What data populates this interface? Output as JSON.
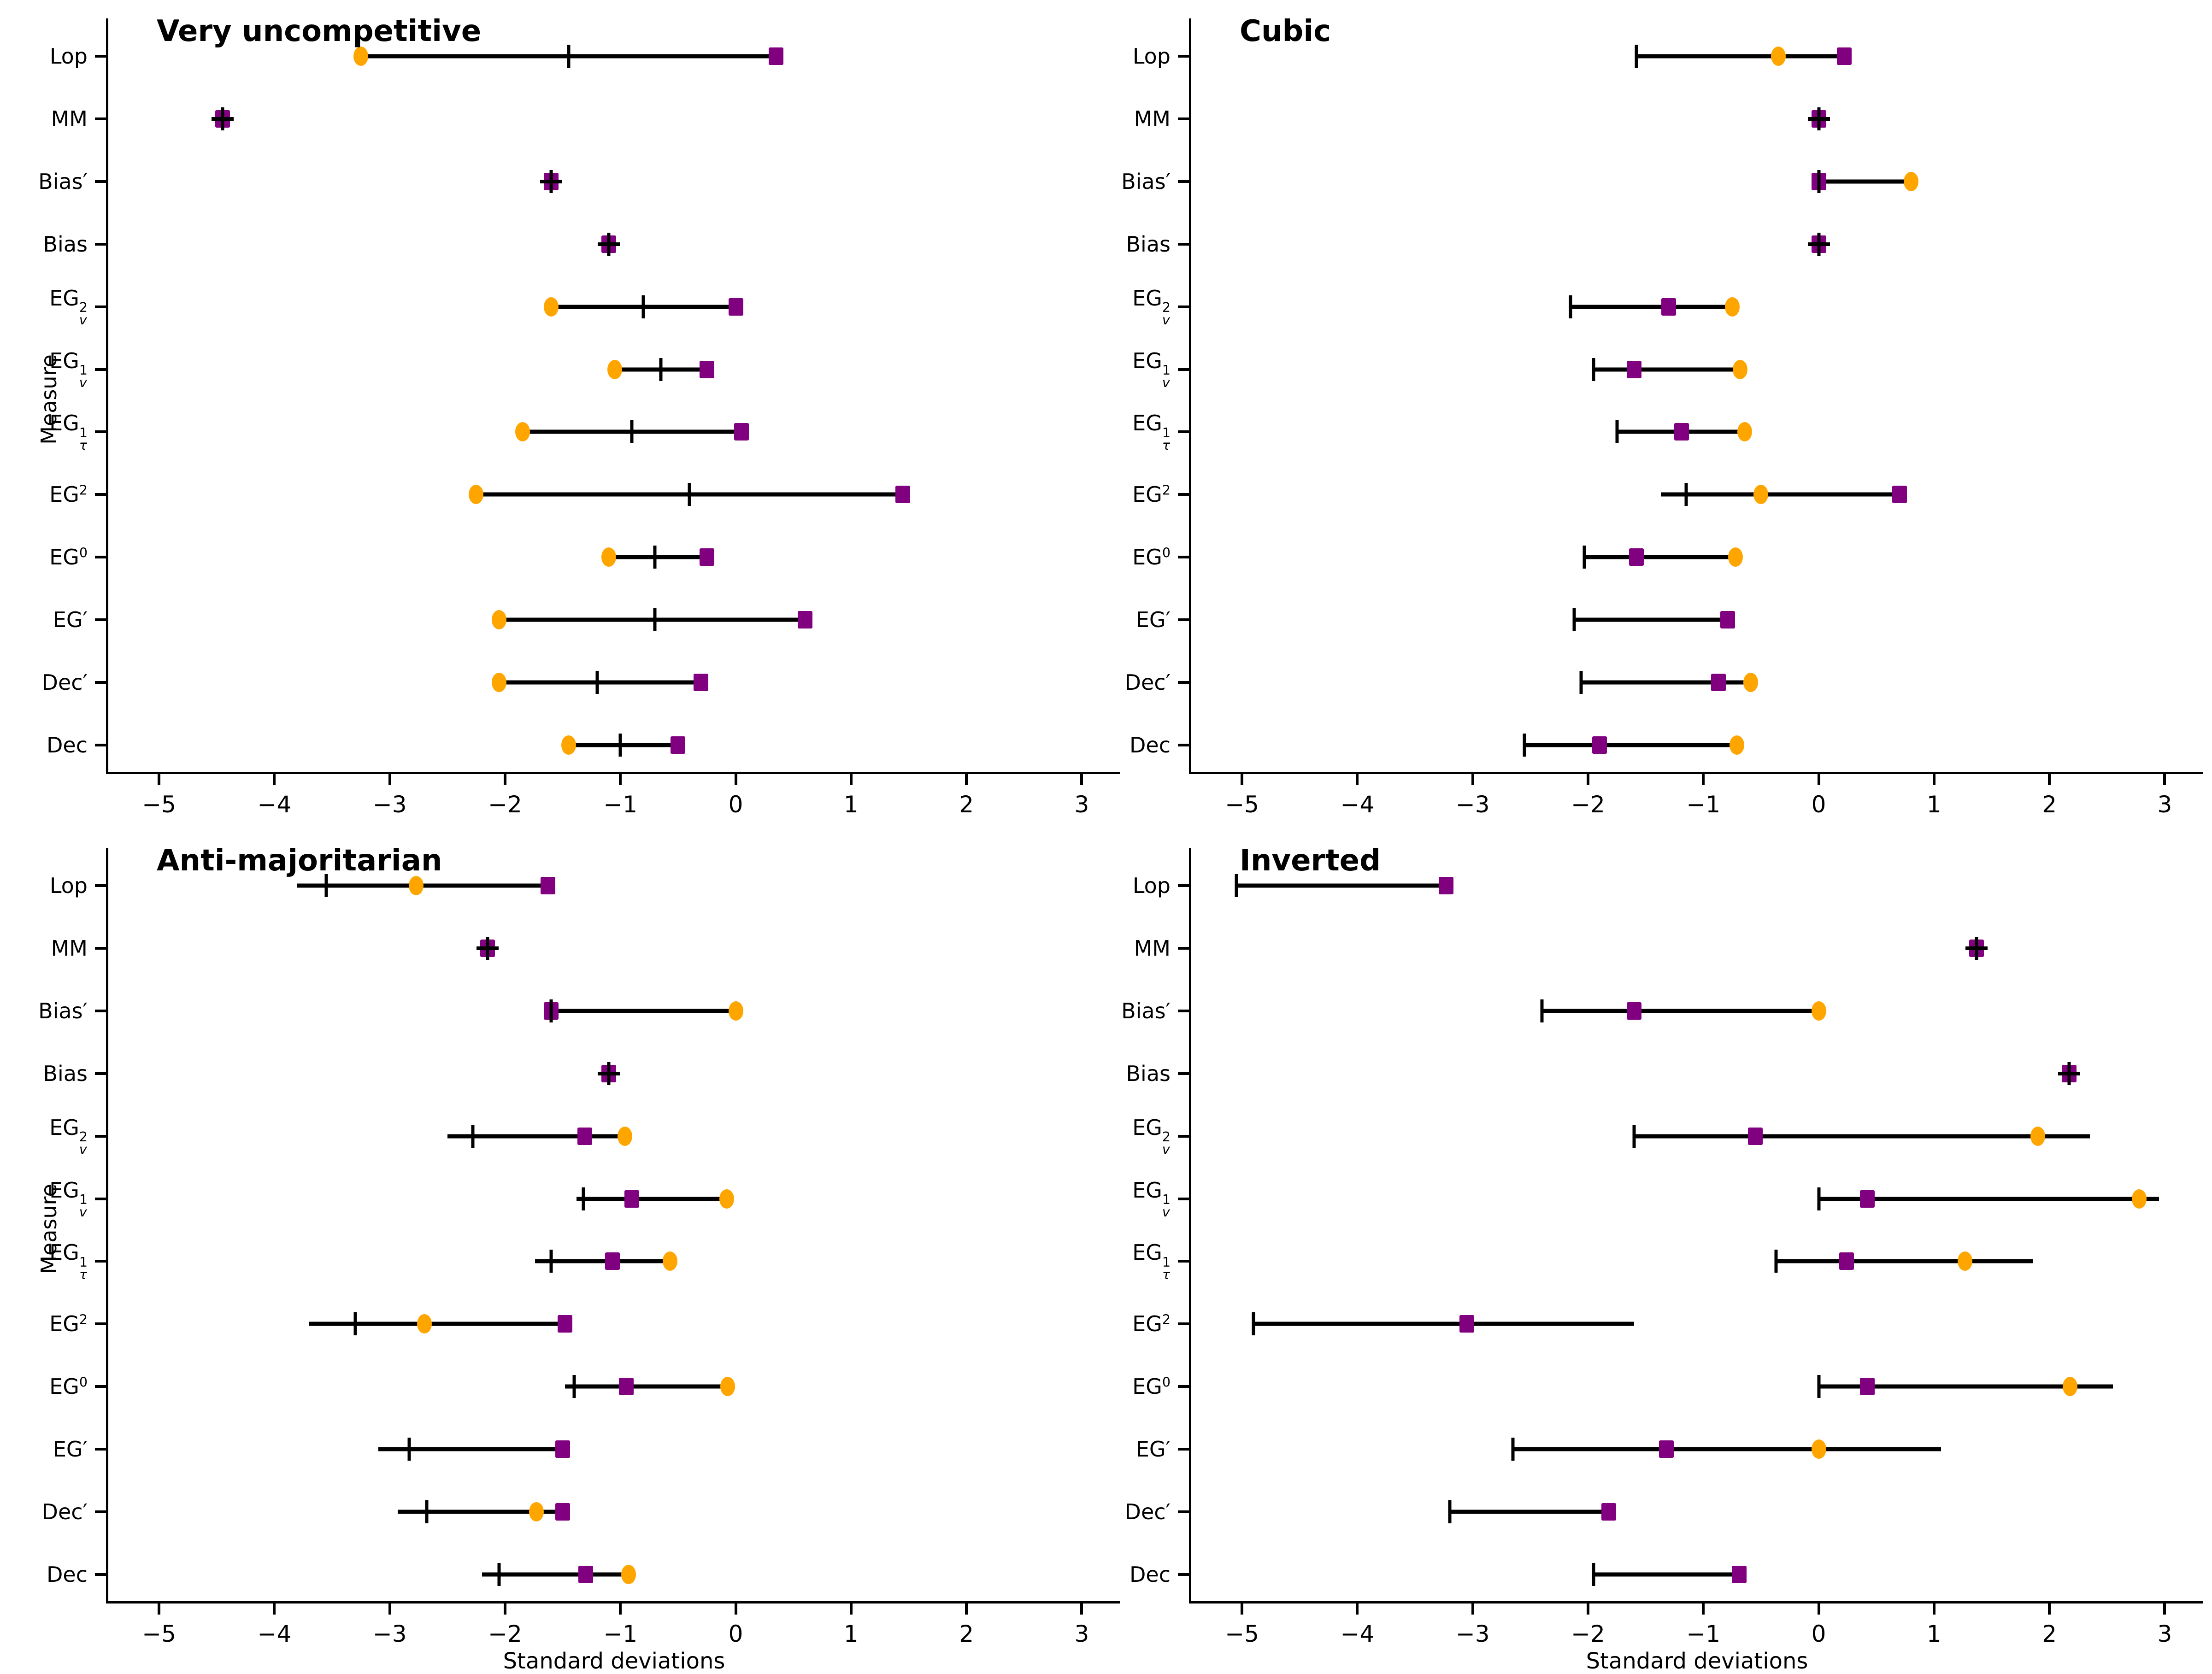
{
  "figure": {
    "xlabel": "Standard deviations",
    "ylabel": "Measure",
    "x_ticks": [
      -5,
      -4,
      -3,
      -2,
      -1,
      0,
      1,
      2,
      3
    ],
    "xmin": -5.44,
    "xmax": 3.33,
    "colors": {
      "circle": "#FFA500",
      "square": "#800080",
      "line": "#000000"
    },
    "measures": [
      {
        "t": "Lop"
      },
      {
        "t": "MM"
      },
      {
        "t": "Bias′"
      },
      {
        "t": "Bias"
      },
      {
        "t": "EG",
        "sup": "2",
        "sub": "v"
      },
      {
        "t": "EG",
        "sup": "1",
        "sub": "v"
      },
      {
        "t": "EG",
        "sup": "1",
        "sub": "τ"
      },
      {
        "t": "EG",
        "sup": "2"
      },
      {
        "t": "EG",
        "sup": "0"
      },
      {
        "t": "EG′"
      },
      {
        "t": "Dec′"
      },
      {
        "t": "Dec"
      }
    ]
  },
  "chart_data": [
    {
      "type": "dot-range",
      "title": "Very uncompetitive",
      "xlabel_shown": false,
      "ylabel_shown": true,
      "rows": [
        {
          "measure": "Lop",
          "lo": -3.25,
          "hi": 0.35,
          "tick": -1.45,
          "circle": -3.25,
          "square": 0.35
        },
        {
          "measure": "MM",
          "lo": null,
          "hi": null,
          "tick": -4.45,
          "circle": null,
          "square": -4.45,
          "cross": true
        },
        {
          "measure": "Bias′",
          "lo": null,
          "hi": null,
          "tick": -1.6,
          "circle": null,
          "square": -1.6,
          "cross": true
        },
        {
          "measure": "Bias",
          "lo": null,
          "hi": null,
          "tick": -1.1,
          "circle": null,
          "square": -1.1,
          "cross": true
        },
        {
          "measure": "EG2v",
          "lo": -1.6,
          "hi": 0.0,
          "tick": -0.8,
          "circle": -1.6,
          "square": 0.0
        },
        {
          "measure": "EG1v",
          "lo": -1.05,
          "hi": -0.25,
          "tick": -0.65,
          "circle": -1.05,
          "square": -0.25
        },
        {
          "measure": "EG1t",
          "lo": -1.85,
          "hi": 0.05,
          "tick": -0.9,
          "circle": -1.85,
          "square": 0.05
        },
        {
          "measure": "EG2",
          "lo": -2.25,
          "hi": 1.45,
          "tick": -0.4,
          "circle": -2.25,
          "square": 1.45
        },
        {
          "measure": "EG0",
          "lo": -1.1,
          "hi": -0.25,
          "tick": -0.7,
          "circle": -1.1,
          "square": -0.25
        },
        {
          "measure": "EG′",
          "lo": -2.05,
          "hi": 0.6,
          "tick": -0.7,
          "circle": -2.05,
          "square": 0.6
        },
        {
          "measure": "Dec′",
          "lo": -2.05,
          "hi": -0.3,
          "tick": -1.2,
          "circle": -2.05,
          "square": -0.3
        },
        {
          "measure": "Dec",
          "lo": -1.45,
          "hi": -0.5,
          "tick": -1.0,
          "circle": -1.45,
          "square": -0.5
        }
      ]
    },
    {
      "type": "dot-range",
      "title": "Cubic",
      "xlabel_shown": false,
      "ylabel_shown": false,
      "rows": [
        {
          "measure": "Lop",
          "lo": -1.58,
          "hi": 0.22,
          "tick": -1.58,
          "circle": -0.35,
          "square": 0.22
        },
        {
          "measure": "MM",
          "lo": null,
          "hi": null,
          "tick": 0.0,
          "circle": null,
          "square": 0.0,
          "cross": true
        },
        {
          "measure": "Bias′",
          "lo": 0.0,
          "hi": 0.8,
          "tick": 0.0,
          "circle": 0.8,
          "square": 0.0,
          "cross": true
        },
        {
          "measure": "Bias",
          "lo": null,
          "hi": null,
          "tick": 0.0,
          "circle": null,
          "square": 0.0,
          "cross": true
        },
        {
          "measure": "EG2v",
          "lo": -2.15,
          "hi": -0.75,
          "tick": -2.15,
          "circle": -0.75,
          "square": -1.3
        },
        {
          "measure": "EG1v",
          "lo": -1.95,
          "hi": -0.68,
          "tick": -1.95,
          "circle": -0.68,
          "square": -1.6
        },
        {
          "measure": "EG1t",
          "lo": -1.75,
          "hi": -0.64,
          "tick": -1.75,
          "circle": -0.64,
          "square": -1.19
        },
        {
          "measure": "EG2",
          "lo": -1.37,
          "hi": 0.7,
          "tick": -1.15,
          "circle": -0.5,
          "square": 0.7
        },
        {
          "measure": "EG0",
          "lo": -2.03,
          "hi": -0.72,
          "tick": -2.03,
          "circle": -0.72,
          "square": -1.58
        },
        {
          "measure": "EG′",
          "lo": -2.12,
          "hi": -0.79,
          "tick": -2.12,
          "circle": null,
          "square": -0.79
        },
        {
          "measure": "Dec′",
          "lo": -2.06,
          "hi": -0.59,
          "tick": -2.06,
          "circle": -0.59,
          "square": -0.87
        },
        {
          "measure": "Dec",
          "lo": -2.55,
          "hi": -0.71,
          "tick": -2.55,
          "circle": -0.71,
          "square": -1.9
        }
      ]
    },
    {
      "type": "dot-range",
      "title": "Anti-majoritarian",
      "xlabel_shown": true,
      "ylabel_shown": true,
      "rows": [
        {
          "measure": "Lop",
          "lo": -3.8,
          "hi": -1.63,
          "tick": -3.55,
          "circle": -2.77,
          "square": -1.63
        },
        {
          "measure": "MM",
          "lo": null,
          "hi": null,
          "tick": -2.15,
          "circle": null,
          "square": -2.15,
          "cross": true
        },
        {
          "measure": "Bias′",
          "lo": -1.6,
          "hi": 0.0,
          "tick": -1.6,
          "circle": 0.0,
          "square": -1.6,
          "cross": true
        },
        {
          "measure": "Bias",
          "lo": null,
          "hi": null,
          "tick": -1.1,
          "circle": null,
          "square": -1.1,
          "cross": true
        },
        {
          "measure": "EG2v",
          "lo": -2.5,
          "hi": -0.96,
          "tick": -2.28,
          "circle": -0.96,
          "square": -1.31
        },
        {
          "measure": "EG1v",
          "lo": -1.38,
          "hi": -0.08,
          "tick": -1.32,
          "circle": -0.08,
          "square": -0.9
        },
        {
          "measure": "EG1t",
          "lo": -1.74,
          "hi": -0.57,
          "tick": -1.6,
          "circle": -0.57,
          "square": -1.07
        },
        {
          "measure": "EG2",
          "lo": -3.7,
          "hi": -1.48,
          "tick": -3.3,
          "circle": -2.7,
          "square": -1.48
        },
        {
          "measure": "EG0",
          "lo": -1.48,
          "hi": -0.07,
          "tick": -1.4,
          "circle": -0.07,
          "square": -0.95
        },
        {
          "measure": "EG′",
          "lo": -3.1,
          "hi": -1.5,
          "tick": -2.83,
          "circle": null,
          "square": -1.5
        },
        {
          "measure": "Dec′",
          "lo": -2.93,
          "hi": -1.5,
          "tick": -2.68,
          "circle": -1.73,
          "square": -1.5
        },
        {
          "measure": "Dec",
          "lo": -2.2,
          "hi": -0.93,
          "tick": -2.05,
          "circle": -0.93,
          "square": -1.3
        }
      ]
    },
    {
      "type": "dot-range",
      "title": "Inverted",
      "xlabel_shown": true,
      "ylabel_shown": false,
      "rows": [
        {
          "measure": "Lop",
          "lo": -5.05,
          "hi": -3.23,
          "tick": -5.05,
          "circle": null,
          "square": -3.23
        },
        {
          "measure": "MM",
          "lo": null,
          "hi": null,
          "tick": 1.37,
          "circle": null,
          "square": 1.37,
          "cross": true
        },
        {
          "measure": "Bias′",
          "lo": -2.4,
          "hi": 0.0,
          "tick": -2.4,
          "circle": 0.0,
          "square": -1.6
        },
        {
          "measure": "Bias",
          "lo": null,
          "hi": null,
          "tick": 2.17,
          "circle": null,
          "square": 2.17,
          "cross": true
        },
        {
          "measure": "EG2v",
          "lo": -1.6,
          "hi": 2.35,
          "tick": -1.6,
          "circle": 1.9,
          "square": -0.55
        },
        {
          "measure": "EG1v",
          "lo": 0.0,
          "hi": 2.95,
          "tick": 0.0,
          "circle": 2.78,
          "square": 0.42
        },
        {
          "measure": "EG1t",
          "lo": -0.37,
          "hi": 1.86,
          "tick": -0.37,
          "circle": 1.27,
          "square": 0.24
        },
        {
          "measure": "EG2",
          "lo": -4.9,
          "hi": -1.6,
          "tick": -4.9,
          "circle": null,
          "square": -3.05
        },
        {
          "measure": "EG0",
          "lo": 0.0,
          "hi": 2.55,
          "tick": 0.0,
          "circle": 2.18,
          "square": 0.42
        },
        {
          "measure": "EG′",
          "lo": -2.65,
          "hi": 1.06,
          "tick": -2.65,
          "circle": 0.0,
          "square": -1.32
        },
        {
          "measure": "Dec′",
          "lo": -3.2,
          "hi": -1.82,
          "tick": -3.2,
          "circle": null,
          "square": -1.82
        },
        {
          "measure": "Dec",
          "lo": -1.95,
          "hi": -0.69,
          "tick": -1.95,
          "circle": null,
          "square": -0.69
        }
      ]
    }
  ]
}
